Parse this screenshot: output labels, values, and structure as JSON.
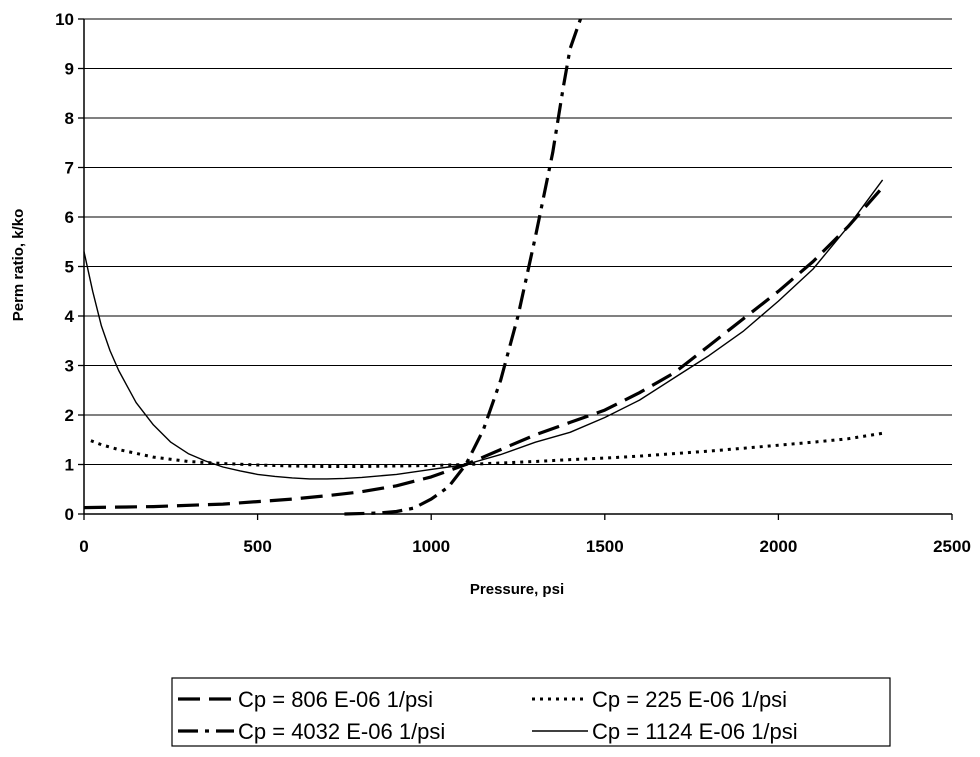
{
  "chart_data": {
    "type": "line",
    "title": "",
    "xlabel": "Pressure, psi",
    "ylabel": "Perm ratio, k/ko",
    "xlim": [
      0,
      2500
    ],
    "ylim": [
      0,
      10
    ],
    "x_ticks": [
      "0",
      "500",
      "1000",
      "1500",
      "2000",
      "2500"
    ],
    "y_ticks": [
      "0",
      "1",
      "2",
      "3",
      "4",
      "5",
      "6",
      "7",
      "8",
      "9",
      "10"
    ],
    "grid": "horizontal",
    "legend_position": "bottom",
    "series": [
      {
        "name": "Cp = 806 E-06  1/psi",
        "style": "long-dash",
        "x": [
          0,
          200,
          400,
          500,
          600,
          700,
          800,
          900,
          1000,
          1100,
          1200,
          1300,
          1400,
          1500,
          1600,
          1700,
          1800,
          1900,
          2000,
          2100,
          2200,
          2300
        ],
        "y": [
          0.13,
          0.15,
          0.2,
          0.25,
          0.3,
          0.37,
          0.45,
          0.57,
          0.75,
          1.0,
          1.3,
          1.6,
          1.85,
          2.1,
          2.45,
          2.85,
          3.4,
          3.95,
          4.5,
          5.1,
          5.8,
          6.6
        ]
      },
      {
        "name": "Cp = 225 E-06  1/psi",
        "style": "dotted",
        "x": [
          20,
          50,
          100,
          200,
          300,
          400,
          500,
          600,
          700,
          800,
          900,
          1000,
          1100,
          1200,
          1300,
          1400,
          1500,
          1600,
          1700,
          1800,
          1900,
          2000,
          2100,
          2200,
          2300
        ],
        "y": [
          1.48,
          1.4,
          1.3,
          1.15,
          1.06,
          1.02,
          0.99,
          0.97,
          0.96,
          0.96,
          0.97,
          0.98,
          1.0,
          1.03,
          1.06,
          1.1,
          1.13,
          1.17,
          1.22,
          1.27,
          1.33,
          1.39,
          1.45,
          1.52,
          1.63
        ]
      },
      {
        "name": "Cp = 4032 E-06  1/psi",
        "style": "dash-dot",
        "x": [
          750,
          850,
          900,
          950,
          1000,
          1050,
          1100,
          1150,
          1200,
          1250,
          1300,
          1350,
          1380,
          1400,
          1430
        ],
        "y": [
          0,
          0.02,
          0.05,
          0.12,
          0.3,
          0.55,
          1.0,
          1.7,
          2.7,
          4.0,
          5.6,
          7.3,
          8.6,
          9.4,
          10
        ]
      },
      {
        "name": "Cp = 1124 E-06  1/psi",
        "style": "solid",
        "x": [
          0,
          25,
          50,
          75,
          100,
          150,
          200,
          250,
          300,
          350,
          400,
          450,
          500,
          550,
          600,
          650,
          700,
          750,
          800,
          850,
          900,
          950,
          1000,
          1050,
          1100,
          1200,
          1300,
          1400,
          1500,
          1600,
          1700,
          1800,
          1900,
          2000,
          2100,
          2200,
          2300
        ],
        "y": [
          5.3,
          4.5,
          3.8,
          3.3,
          2.9,
          2.25,
          1.8,
          1.45,
          1.22,
          1.07,
          0.95,
          0.87,
          0.8,
          0.76,
          0.73,
          0.71,
          0.71,
          0.72,
          0.74,
          0.77,
          0.8,
          0.85,
          0.9,
          0.95,
          1.0,
          1.2,
          1.45,
          1.65,
          1.95,
          2.3,
          2.75,
          3.2,
          3.7,
          4.3,
          4.95,
          5.8,
          6.75
        ]
      }
    ]
  }
}
